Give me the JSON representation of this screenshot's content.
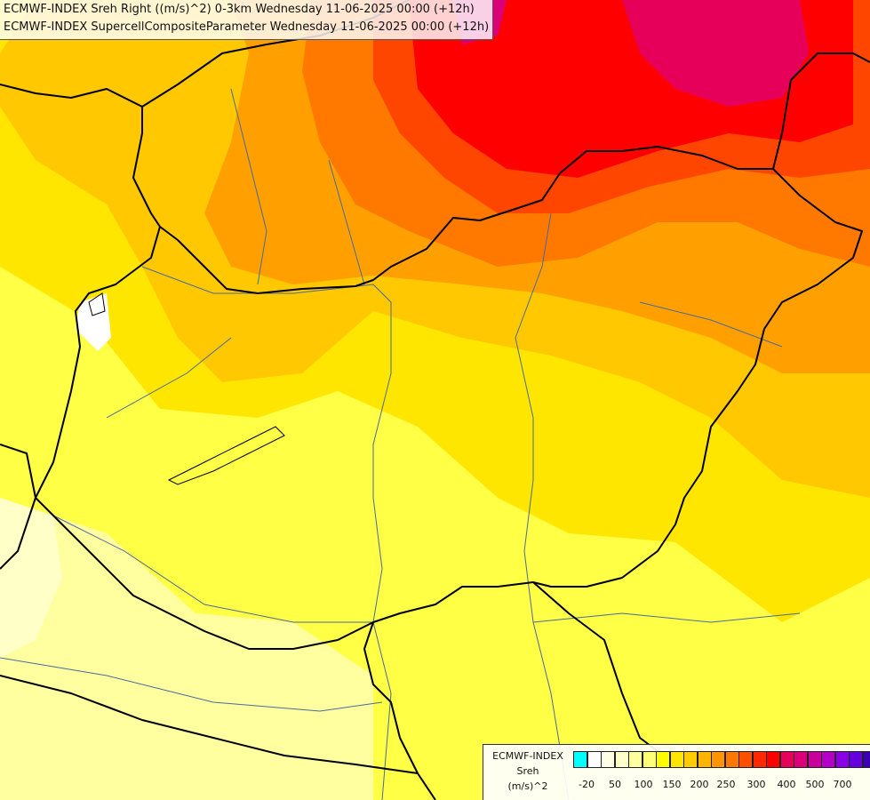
{
  "titles": {
    "line1": "ECMWF-INDEX Sreh Right ((m/s)^2) 0-3km Wednesday 11-06-2025 00:00 (+12h)",
    "line2": "ECMWF-INDEX SupercellCompositeParameter Wednesday 11-06-2025 00:00 (+12h)"
  },
  "legend": {
    "name": "ECMWF-INDEX",
    "variable": "Sreh",
    "unit": "(m/s)^2",
    "colors": [
      "#00ffff",
      "#ffffff",
      "#ffffe6",
      "#ffffc8",
      "#ffffa0",
      "#ffff78",
      "#ffff00",
      "#ffe600",
      "#ffcc00",
      "#ffb400",
      "#ff9600",
      "#ff7800",
      "#ff5000",
      "#ff2800",
      "#ff0000",
      "#e6005a",
      "#dc0078",
      "#c8009b",
      "#b400c8",
      "#8c00e6",
      "#6400dc",
      "#3c00b4",
      "#000096"
    ],
    "tick_labels": [
      "-20",
      "50",
      "100",
      "150",
      "200",
      "250",
      "300",
      "400",
      "500",
      "700"
    ]
  },
  "map_colors": {
    "pale": "#ffffc8",
    "light_yellow": "#ffffa0",
    "yellow": "#ffff46",
    "gold": "#ffe600",
    "amber": "#ffc800",
    "orange": "#ffa000",
    "dark_orange": "#ff7800",
    "red_orange": "#ff4600",
    "red": "#ff0000",
    "crimson": "#e6005a",
    "border": "#000000",
    "river": "#4a6a9a"
  }
}
